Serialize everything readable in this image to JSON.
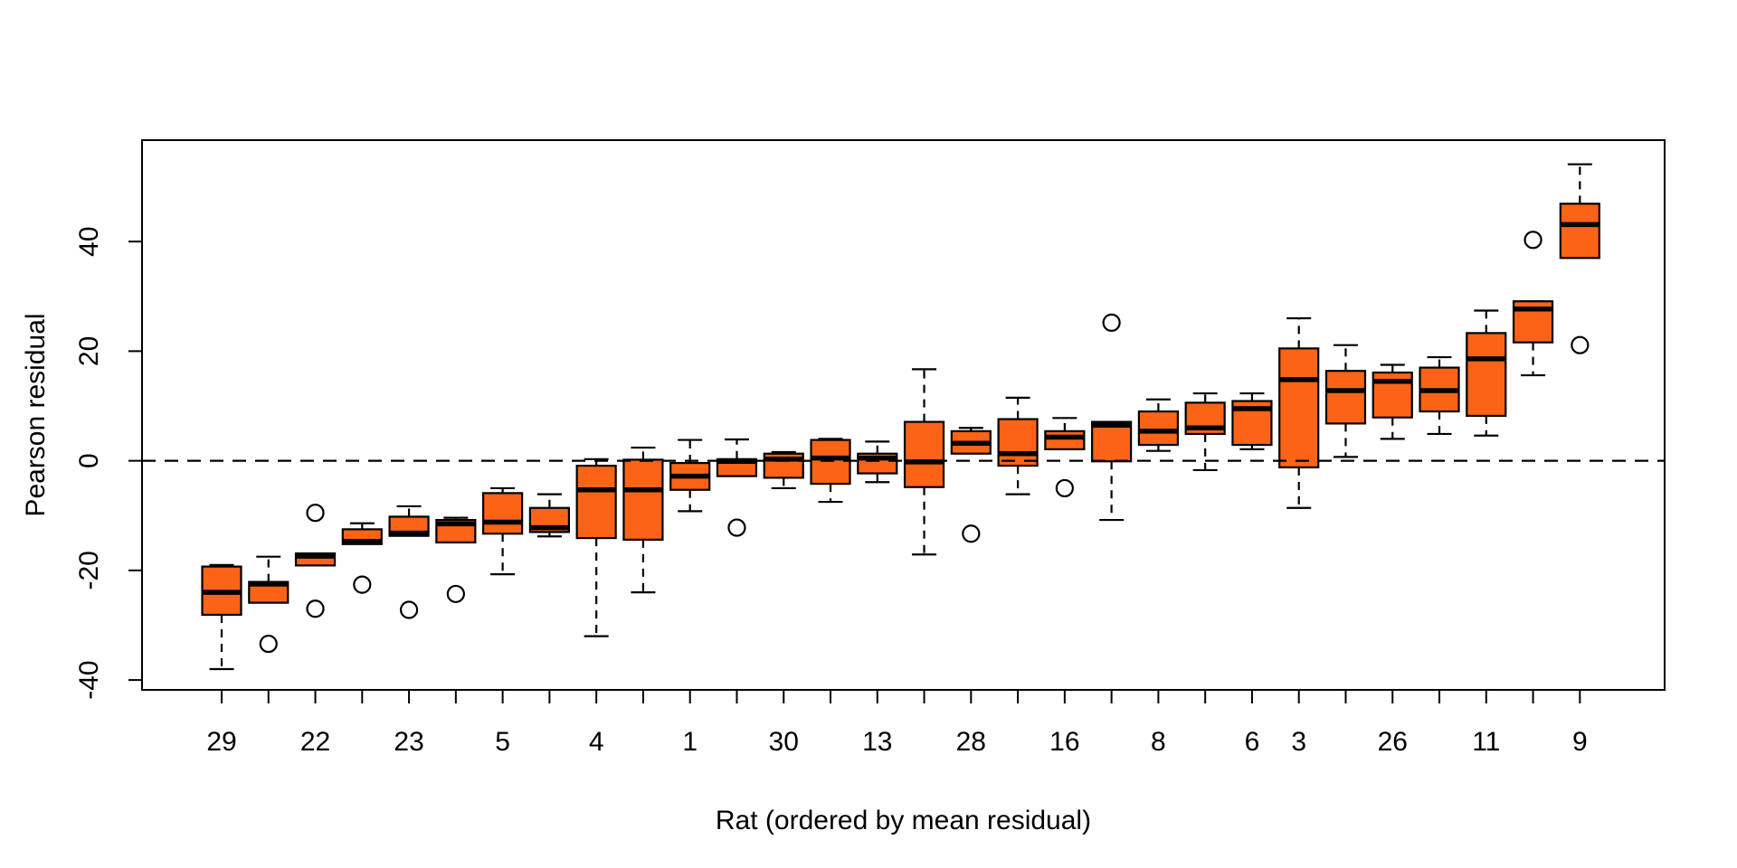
{
  "figure": {
    "background": "#ffffff",
    "xlabel": "Rat (ordered by mean residual)",
    "ylabel": "Pearson residual"
  },
  "colors": {
    "box_fill": "#FB6316",
    "box_border": "#000000",
    "median": "#000000",
    "whisker": "#000000",
    "outlier_stroke": "#000000",
    "outlier_fill": "#ffffff",
    "zero_line": "#000000",
    "axis": "#000000",
    "text": "#000000"
  },
  "chart_data": {
    "type": "boxplot",
    "title": "",
    "xlabel": "Rat (ordered by mean residual)",
    "ylabel": "Pearson residual",
    "n_groups": 30,
    "ylim": [
      -41.8,
      58.5
    ],
    "y_ticks": [
      -40,
      -20,
      0,
      20,
      40
    ],
    "y_tick_labels": [
      "-40",
      "-20",
      "0",
      "20",
      "40"
    ],
    "zero_line": 0,
    "grid": false,
    "x_tick_every_group": true,
    "x_tick_labels": [
      {
        "pos": 1,
        "label": "29"
      },
      {
        "pos": 3,
        "label": "22"
      },
      {
        "pos": 5,
        "label": "23"
      },
      {
        "pos": 7,
        "label": "5"
      },
      {
        "pos": 9,
        "label": "4"
      },
      {
        "pos": 11,
        "label": "1"
      },
      {
        "pos": 13,
        "label": "30"
      },
      {
        "pos": 15,
        "label": "13"
      },
      {
        "pos": 17,
        "label": "28"
      },
      {
        "pos": 19,
        "label": "16"
      },
      {
        "pos": 21,
        "label": "8"
      },
      {
        "pos": 23,
        "label": "6"
      },
      {
        "pos": 24,
        "label": "3"
      },
      {
        "pos": 26,
        "label": "26"
      },
      {
        "pos": 28,
        "label": "11"
      },
      {
        "pos": 30,
        "label": "9"
      }
    ],
    "boxes": [
      {
        "pos": 1,
        "rat": "29",
        "lo": -38.0,
        "q1": -28.1,
        "med": -24.0,
        "q3": -19.3,
        "hi": -19.0,
        "outliers": []
      },
      {
        "pos": 2,
        "rat": "",
        "lo": -25.9,
        "q1": -25.9,
        "med": -22.5,
        "q3": -22.1,
        "hi": -17.5,
        "outliers": [
          -33.4
        ]
      },
      {
        "pos": 3,
        "rat": "22",
        "lo": -19.1,
        "q1": -19.1,
        "med": -17.4,
        "q3": -16.9,
        "hi": -16.9,
        "outliers": [
          -9.5,
          -27.0
        ]
      },
      {
        "pos": 4,
        "rat": "",
        "lo": -15.2,
        "q1": -15.2,
        "med": -14.7,
        "q3": -12.5,
        "hi": -11.4,
        "outliers": [
          -22.6
        ]
      },
      {
        "pos": 5,
        "rat": "23",
        "lo": -13.7,
        "q1": -13.7,
        "med": -13.2,
        "q3": -10.2,
        "hi": -8.3,
        "outliers": [
          -27.2
        ]
      },
      {
        "pos": 6,
        "rat": "",
        "lo": -14.9,
        "q1": -14.9,
        "med": -11.5,
        "q3": -10.8,
        "hi": -10.4,
        "outliers": [
          -24.3
        ]
      },
      {
        "pos": 7,
        "rat": "5",
        "lo": -20.7,
        "q1": -13.3,
        "med": -11.2,
        "q3": -5.9,
        "hi": -5.0,
        "outliers": []
      },
      {
        "pos": 8,
        "rat": "",
        "lo": -13.8,
        "q1": -13.0,
        "med": -12.2,
        "q3": -8.6,
        "hi": -6.1,
        "outliers": []
      },
      {
        "pos": 9,
        "rat": "4",
        "lo": -32.0,
        "q1": -14.1,
        "med": -5.3,
        "q3": -0.9,
        "hi": 0.3,
        "outliers": []
      },
      {
        "pos": 10,
        "rat": "",
        "lo": -24.0,
        "q1": -14.4,
        "med": -5.3,
        "q3": 0.2,
        "hi": 2.4,
        "outliers": []
      },
      {
        "pos": 11,
        "rat": "1",
        "lo": -9.2,
        "q1": -5.3,
        "med": -2.8,
        "q3": -0.4,
        "hi": 3.8,
        "outliers": []
      },
      {
        "pos": 12,
        "rat": "",
        "lo": -2.8,
        "q1": -2.8,
        "med": -0.1,
        "q3": 0.3,
        "hi": 3.9,
        "outliers": [
          -12.2
        ]
      },
      {
        "pos": 13,
        "rat": "30",
        "lo": -5.0,
        "q1": -3.1,
        "med": 0.3,
        "q3": 1.3,
        "hi": 1.6,
        "outliers": []
      },
      {
        "pos": 14,
        "rat": "",
        "lo": -7.5,
        "q1": -4.2,
        "med": 0.5,
        "q3": 3.8,
        "hi": 4.0,
        "outliers": []
      },
      {
        "pos": 15,
        "rat": "13",
        "lo": -3.9,
        "q1": -2.3,
        "med": 0.5,
        "q3": 1.3,
        "hi": 3.5,
        "outliers": []
      },
      {
        "pos": 16,
        "rat": "",
        "lo": -17.1,
        "q1": -4.8,
        "med": -0.2,
        "q3": 7.1,
        "hi": 16.7,
        "outliers": []
      },
      {
        "pos": 17,
        "rat": "28",
        "lo": 1.3,
        "q1": 1.3,
        "med": 3.2,
        "q3": 5.4,
        "hi": 6.0,
        "outliers": [
          -13.3
        ]
      },
      {
        "pos": 18,
        "rat": "",
        "lo": -6.1,
        "q1": -0.9,
        "med": 1.3,
        "q3": 7.6,
        "hi": 11.5,
        "outliers": []
      },
      {
        "pos": 19,
        "rat": "16",
        "lo": 2.1,
        "q1": 2.1,
        "med": 4.3,
        "q3": 5.4,
        "hi": 7.8,
        "outliers": [
          -5.0
        ]
      },
      {
        "pos": 20,
        "rat": "",
        "lo": -10.8,
        "q1": -0.1,
        "med": 6.5,
        "q3": 7.1,
        "hi": 7.1,
        "outliers": [
          25.2
        ]
      },
      {
        "pos": 21,
        "rat": "8",
        "lo": 1.8,
        "q1": 2.9,
        "med": 5.4,
        "q3": 9.0,
        "hi": 11.2,
        "outliers": []
      },
      {
        "pos": 22,
        "rat": "",
        "lo": -1.7,
        "q1": 4.9,
        "med": 6.0,
        "q3": 10.6,
        "hi": 12.3,
        "outliers": []
      },
      {
        "pos": 23,
        "rat": "6",
        "lo": 2.1,
        "q1": 2.9,
        "med": 9.5,
        "q3": 10.9,
        "hi": 12.3,
        "outliers": []
      },
      {
        "pos": 24,
        "rat": "3",
        "lo": -8.6,
        "q1": -1.2,
        "med": 14.8,
        "q3": 20.5,
        "hi": 26.0,
        "outliers": []
      },
      {
        "pos": 25,
        "rat": "",
        "lo": 0.7,
        "q1": 6.8,
        "med": 12.8,
        "q3": 16.4,
        "hi": 21.1,
        "outliers": []
      },
      {
        "pos": 26,
        "rat": "26",
        "lo": 4.0,
        "q1": 7.9,
        "med": 14.5,
        "q3": 16.1,
        "hi": 17.5,
        "outliers": []
      },
      {
        "pos": 27,
        "rat": "",
        "lo": 4.9,
        "q1": 9.0,
        "med": 12.8,
        "q3": 17.0,
        "hi": 18.9,
        "outliers": []
      },
      {
        "pos": 28,
        "rat": "11",
        "lo": 4.6,
        "q1": 8.2,
        "med": 18.6,
        "q3": 23.3,
        "hi": 27.4,
        "outliers": []
      },
      {
        "pos": 29,
        "rat": "",
        "lo": 15.6,
        "q1": 21.6,
        "med": 27.7,
        "q3": 29.1,
        "hi": 29.1,
        "outliers": [
          40.3
        ]
      },
      {
        "pos": 30,
        "rat": "9",
        "lo": 37.0,
        "q1": 37.0,
        "med": 43.1,
        "q3": 46.9,
        "hi": 54.1,
        "outliers": [
          21.1
        ]
      }
    ]
  }
}
